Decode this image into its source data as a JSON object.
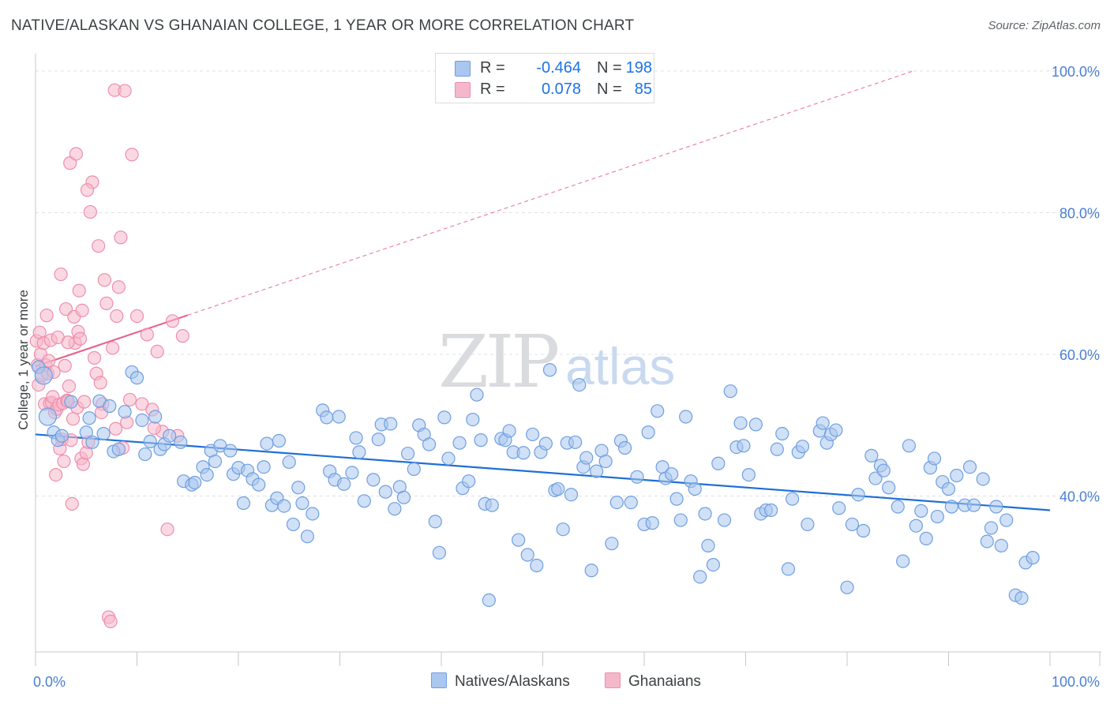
{
  "title": "NATIVE/ALASKAN VS GHANAIAN COLLEGE, 1 YEAR OR MORE CORRELATION CHART",
  "source": "Source: ZipAtlas.com",
  "watermark": {
    "zip": "ZIP",
    "atlas": "atlas"
  },
  "colors": {
    "blue_fill": "#aac7ef",
    "blue_stroke": "#6f9fe0",
    "blue_line": "#1f6fd6",
    "pink_fill": "#f5b8cb",
    "pink_stroke": "#ee8eae",
    "pink_line": "#e8658f",
    "axis_label": "#4a7fd4",
    "grid": "#dde0e4"
  },
  "legend": {
    "rows": [
      {
        "swatch": "blue",
        "r_label": "R =",
        "r_value": "-0.464",
        "n_label": "N =",
        "n_value": "198"
      },
      {
        "swatch": "pink",
        "r_label": "R =",
        "r_value": "0.078",
        "n_label": "N =",
        "n_value": "85"
      }
    ]
  },
  "bottom_legend": {
    "blue_label": "Natives/Alaskans",
    "pink_label": "Ghanaians"
  },
  "chart_data": {
    "type": "scatter",
    "xlabel": "",
    "ylabel": "College, 1 year or more",
    "xlim": [
      0,
      100
    ],
    "ylim": [
      18,
      102
    ],
    "x_tick_labels": [
      "0.0%",
      "100.0%"
    ],
    "y_ticks": [
      40,
      60,
      80,
      100
    ],
    "y_tick_labels": [
      "40.0%",
      "60.0%",
      "80.0%",
      "100.0%"
    ],
    "grid": true,
    "series": [
      {
        "name": "Natives/Alaskans",
        "color": "blue",
        "r": -0.464,
        "n": 198,
        "trend": {
          "x0": 0,
          "y0": 48.7,
          "x1": 100,
          "y1": 38.0,
          "solid_until": 100
        },
        "points": [
          [
            0.3,
            58.2
          ],
          [
            0.8,
            57.0
          ],
          [
            1.2,
            51.2
          ],
          [
            1.8,
            49.0
          ],
          [
            2.2,
            47.9
          ],
          [
            2.6,
            48.5
          ],
          [
            3.5,
            53.3
          ],
          [
            5.0,
            49.0
          ],
          [
            5.3,
            51.0
          ],
          [
            5.6,
            47.6
          ],
          [
            6.3,
            53.4
          ],
          [
            6.7,
            48.8
          ],
          [
            7.3,
            52.7
          ],
          [
            7.7,
            46.3
          ],
          [
            8.2,
            46.6
          ],
          [
            8.8,
            51.9
          ],
          [
            9.5,
            57.5
          ],
          [
            10.0,
            56.7
          ],
          [
            10.5,
            50.7
          ],
          [
            10.8,
            45.9
          ],
          [
            11.3,
            47.7
          ],
          [
            11.8,
            51.2
          ],
          [
            12.3,
            46.6
          ],
          [
            12.7,
            47.3
          ],
          [
            13.2,
            48.5
          ],
          [
            14.3,
            47.6
          ],
          [
            14.6,
            42.1
          ],
          [
            15.4,
            41.6
          ],
          [
            15.7,
            41.9
          ],
          [
            16.5,
            44.1
          ],
          [
            16.9,
            43.0
          ],
          [
            17.3,
            46.4
          ],
          [
            17.7,
            44.9
          ],
          [
            18.2,
            47.1
          ],
          [
            19.2,
            46.4
          ],
          [
            19.5,
            43.1
          ],
          [
            20.0,
            44.0
          ],
          [
            20.5,
            39.0
          ],
          [
            20.9,
            43.6
          ],
          [
            21.4,
            42.4
          ],
          [
            22.0,
            41.6
          ],
          [
            22.5,
            44.1
          ],
          [
            22.8,
            47.4
          ],
          [
            23.3,
            38.7
          ],
          [
            23.8,
            39.7
          ],
          [
            24.0,
            47.8
          ],
          [
            24.5,
            38.6
          ],
          [
            25.0,
            44.8
          ],
          [
            25.4,
            36.0
          ],
          [
            25.9,
            41.2
          ],
          [
            26.3,
            39.0
          ],
          [
            26.8,
            34.3
          ],
          [
            27.3,
            37.5
          ],
          [
            28.3,
            52.1
          ],
          [
            28.7,
            51.1
          ],
          [
            29.0,
            43.5
          ],
          [
            29.5,
            42.3
          ],
          [
            29.9,
            51.2
          ],
          [
            30.4,
            41.7
          ],
          [
            31.2,
            43.3
          ],
          [
            31.6,
            48.2
          ],
          [
            31.9,
            46.2
          ],
          [
            32.4,
            39.3
          ],
          [
            33.3,
            42.3
          ],
          [
            33.8,
            48.0
          ],
          [
            34.1,
            50.1
          ],
          [
            34.5,
            40.6
          ],
          [
            35.0,
            50.2
          ],
          [
            35.4,
            38.2
          ],
          [
            35.9,
            41.3
          ],
          [
            36.3,
            39.8
          ],
          [
            36.7,
            46.0
          ],
          [
            37.3,
            43.8
          ],
          [
            37.8,
            50.0
          ],
          [
            38.3,
            48.7
          ],
          [
            38.8,
            47.3
          ],
          [
            39.4,
            36.4
          ],
          [
            39.8,
            32.0
          ],
          [
            40.3,
            51.1
          ],
          [
            40.7,
            45.3
          ],
          [
            41.8,
            47.5
          ],
          [
            42.1,
            41.1
          ],
          [
            42.7,
            42.1
          ],
          [
            43.1,
            50.8
          ],
          [
            43.5,
            54.3
          ],
          [
            43.9,
            47.9
          ],
          [
            44.3,
            38.9
          ],
          [
            44.7,
            25.3
          ],
          [
            45.0,
            38.7
          ],
          [
            45.9,
            48.1
          ],
          [
            46.3,
            47.9
          ],
          [
            46.7,
            49.2
          ],
          [
            47.1,
            46.2
          ],
          [
            47.6,
            33.8
          ],
          [
            48.1,
            46.1
          ],
          [
            48.5,
            31.7
          ],
          [
            49.0,
            48.7
          ],
          [
            49.4,
            30.2
          ],
          [
            49.8,
            46.2
          ],
          [
            50.3,
            47.4
          ],
          [
            50.7,
            57.8
          ],
          [
            51.2,
            40.8
          ],
          [
            51.5,
            41.0
          ],
          [
            52.0,
            35.3
          ],
          [
            52.4,
            47.5
          ],
          [
            52.8,
            40.2
          ],
          [
            53.2,
            47.6
          ],
          [
            53.6,
            55.7
          ],
          [
            54.0,
            44.1
          ],
          [
            54.3,
            45.4
          ],
          [
            54.8,
            29.5
          ],
          [
            55.3,
            43.5
          ],
          [
            55.8,
            46.4
          ],
          [
            56.2,
            44.9
          ],
          [
            56.8,
            33.3
          ],
          [
            57.3,
            39.1
          ],
          [
            57.7,
            47.8
          ],
          [
            58.1,
            46.8
          ],
          [
            58.7,
            39.1
          ],
          [
            59.3,
            42.7
          ],
          [
            60.0,
            36.0
          ],
          [
            60.4,
            49.0
          ],
          [
            60.8,
            36.2
          ],
          [
            61.3,
            52.0
          ],
          [
            61.8,
            44.1
          ],
          [
            62.1,
            42.5
          ],
          [
            62.7,
            43.1
          ],
          [
            63.2,
            39.6
          ],
          [
            63.6,
            36.6
          ],
          [
            64.1,
            51.2
          ],
          [
            64.6,
            42.1
          ],
          [
            65.0,
            41.0
          ],
          [
            65.5,
            28.6
          ],
          [
            66.0,
            37.5
          ],
          [
            66.3,
            33.0
          ],
          [
            66.8,
            30.3
          ],
          [
            67.3,
            44.6
          ],
          [
            67.9,
            36.6
          ],
          [
            68.5,
            54.8
          ],
          [
            69.1,
            46.9
          ],
          [
            69.5,
            50.3
          ],
          [
            69.8,
            47.1
          ],
          [
            70.3,
            43.0
          ],
          [
            71.0,
            50.1
          ],
          [
            71.5,
            37.5
          ],
          [
            72.0,
            38.0
          ],
          [
            72.5,
            38.0
          ],
          [
            73.1,
            46.6
          ],
          [
            73.6,
            48.8
          ],
          [
            74.2,
            29.7
          ],
          [
            74.6,
            39.6
          ],
          [
            75.2,
            46.2
          ],
          [
            75.6,
            47.0
          ],
          [
            76.1,
            36.0
          ],
          [
            77.3,
            49.2
          ],
          [
            77.6,
            50.3
          ],
          [
            78.0,
            47.5
          ],
          [
            78.4,
            48.7
          ],
          [
            78.9,
            49.3
          ],
          [
            79.2,
            38.3
          ],
          [
            80.0,
            27.1
          ],
          [
            80.5,
            36.0
          ],
          [
            81.1,
            40.2
          ],
          [
            81.6,
            35.1
          ],
          [
            82.4,
            45.7
          ],
          [
            82.8,
            42.5
          ],
          [
            83.3,
            44.3
          ],
          [
            83.6,
            43.6
          ],
          [
            84.1,
            41.2
          ],
          [
            85.0,
            38.5
          ],
          [
            85.5,
            30.8
          ],
          [
            86.1,
            47.1
          ],
          [
            86.8,
            35.8
          ],
          [
            87.3,
            37.9
          ],
          [
            87.8,
            34.0
          ],
          [
            88.2,
            44.0
          ],
          [
            88.6,
            45.3
          ],
          [
            88.9,
            37.1
          ],
          [
            89.4,
            42.0
          ],
          [
            90.0,
            41.0
          ],
          [
            90.3,
            38.5
          ],
          [
            90.8,
            42.9
          ],
          [
            91.6,
            38.7
          ],
          [
            92.1,
            44.1
          ],
          [
            92.5,
            38.7
          ],
          [
            93.4,
            42.4
          ],
          [
            93.8,
            33.6
          ],
          [
            94.2,
            35.5
          ],
          [
            94.7,
            38.5
          ],
          [
            95.2,
            33.0
          ],
          [
            95.7,
            36.6
          ],
          [
            96.6,
            26.0
          ],
          [
            97.2,
            25.6
          ],
          [
            97.6,
            30.6
          ],
          [
            98.3,
            31.3
          ]
        ]
      },
      {
        "name": "Ghanaians",
        "color": "pink",
        "r": 0.078,
        "n": 85,
        "trend": {
          "x0": 0,
          "y0": 58.3,
          "x1": 100,
          "y1": 106.5,
          "solid_until": 15
        },
        "points": [
          [
            0.1,
            61.9
          ],
          [
            0.2,
            58.5
          ],
          [
            0.3,
            55.7
          ],
          [
            0.4,
            63.1
          ],
          [
            0.5,
            60.0
          ],
          [
            0.6,
            57.0
          ],
          [
            0.8,
            61.6
          ],
          [
            0.9,
            53.0
          ],
          [
            1.0,
            58.5
          ],
          [
            1.1,
            65.5
          ],
          [
            1.2,
            57.3
          ],
          [
            1.3,
            59.1
          ],
          [
            1.4,
            53.1
          ],
          [
            1.5,
            62.0
          ],
          [
            1.6,
            53.2
          ],
          [
            1.7,
            54.0
          ],
          [
            1.8,
            57.5
          ],
          [
            1.9,
            51.8
          ],
          [
            2.0,
            43.0
          ],
          [
            2.1,
            52.3
          ],
          [
            2.2,
            62.4
          ],
          [
            2.3,
            52.9
          ],
          [
            2.4,
            46.7
          ],
          [
            2.5,
            71.3
          ],
          [
            2.6,
            48.0
          ],
          [
            2.7,
            53.1
          ],
          [
            2.8,
            44.9
          ],
          [
            2.9,
            58.4
          ],
          [
            3.0,
            66.4
          ],
          [
            3.1,
            53.5
          ],
          [
            3.2,
            53.4
          ],
          [
            3.3,
            55.5
          ],
          [
            3.4,
            87.0
          ],
          [
            3.5,
            47.9
          ],
          [
            3.6,
            38.9
          ],
          [
            3.7,
            50.9
          ],
          [
            3.8,
            65.3
          ],
          [
            3.9,
            61.6
          ],
          [
            4.0,
            88.3
          ],
          [
            4.1,
            52.5
          ],
          [
            4.2,
            63.2
          ],
          [
            4.3,
            69.0
          ],
          [
            4.4,
            62.2
          ],
          [
            4.5,
            45.3
          ],
          [
            4.6,
            66.2
          ],
          [
            4.7,
            44.5
          ],
          [
            4.8,
            53.3
          ],
          [
            5.0,
            46.1
          ],
          [
            5.2,
            47.6
          ],
          [
            5.4,
            80.1
          ],
          [
            5.6,
            84.3
          ],
          [
            5.8,
            59.5
          ],
          [
            6.0,
            57.3
          ],
          [
            6.2,
            75.3
          ],
          [
            6.4,
            56.0
          ],
          [
            6.6,
            53.0
          ],
          [
            6.8,
            70.5
          ],
          [
            7.0,
            67.2
          ],
          [
            7.2,
            22.9
          ],
          [
            7.4,
            22.3
          ],
          [
            7.6,
            60.9
          ],
          [
            7.8,
            97.3
          ],
          [
            8.0,
            65.4
          ],
          [
            8.2,
            69.5
          ],
          [
            8.4,
            76.5
          ],
          [
            8.6,
            46.8
          ],
          [
            8.8,
            97.2
          ],
          [
            9.0,
            50.4
          ],
          [
            9.5,
            88.2
          ],
          [
            10.0,
            65.4
          ],
          [
            10.5,
            53.0
          ],
          [
            11.0,
            62.8
          ],
          [
            11.5,
            52.2
          ],
          [
            12.0,
            60.4
          ],
          [
            12.5,
            49.1
          ],
          [
            13.0,
            35.3
          ],
          [
            13.5,
            64.7
          ],
          [
            14.0,
            48.5
          ],
          [
            14.5,
            62.6
          ],
          [
            6.5,
            51.8
          ],
          [
            7.9,
            49.5
          ],
          [
            9.3,
            53.6
          ],
          [
            3.2,
            61.7
          ],
          [
            5.1,
            83.2
          ],
          [
            11.7,
            49.6
          ]
        ]
      }
    ]
  }
}
